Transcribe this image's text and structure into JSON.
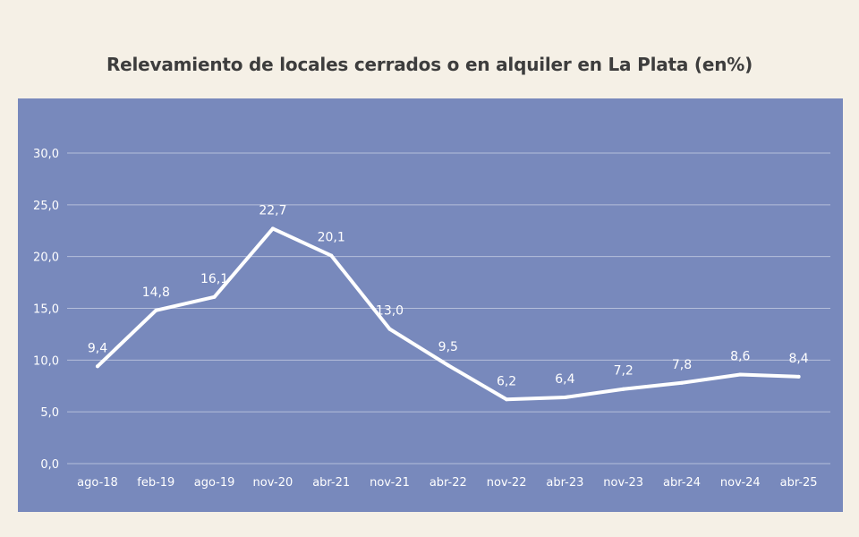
{
  "chart_data": {
    "type": "line",
    "title": "Relevamiento de locales cerrados o en alquiler en La Plata (en%)",
    "categories": [
      "ago-18",
      "feb-19",
      "ago-19",
      "nov-20",
      "abr-21",
      "nov-21",
      "abr-22",
      "nov-22",
      "abr-23",
      "nov-23",
      "abr-24",
      "nov-24",
      "abr-25"
    ],
    "values": [
      9.4,
      14.8,
      16.1,
      22.7,
      20.1,
      13.0,
      9.5,
      6.2,
      6.4,
      7.2,
      7.8,
      8.6,
      8.4
    ],
    "data_labels": [
      "9,4",
      "14,8",
      "16,1",
      "22,7",
      "20,1",
      "13,0",
      "9,5",
      "6,2",
      "6,4",
      "7,2",
      "7,8",
      "8,6",
      "8,4"
    ],
    "y_ticks": [
      "0,0",
      "5,0",
      "10,0",
      "15,0",
      "20,0",
      "25,0",
      "30,0"
    ],
    "ylim": [
      0,
      30
    ],
    "grid": true,
    "colors": {
      "background": "#f5f0e6",
      "plot": "#7889bc",
      "line": "#ffffff"
    }
  }
}
